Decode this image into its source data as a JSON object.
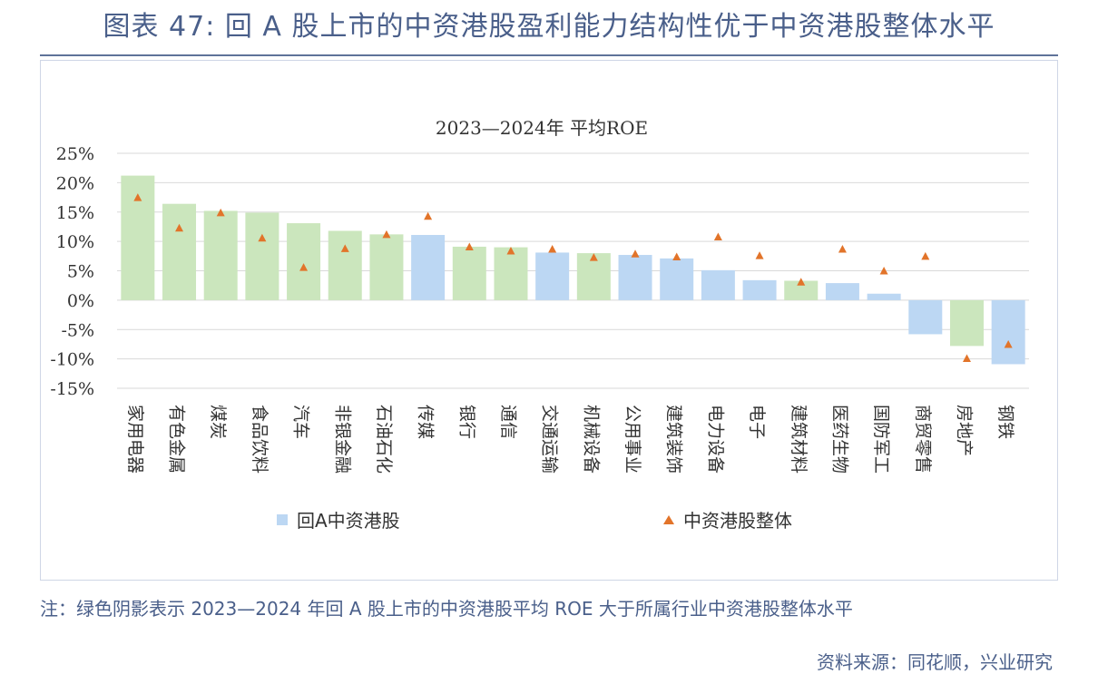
{
  "header": {
    "title": "图表 47: 回 A 股上市的中资港股盈利能力结构性优于中资港股整体水平"
  },
  "note": "注：绿色阴影表示 2023—2024 年回 A 股上市的中资港股平均 ROE 大于所属行业中资港股整体水平",
  "source": "资料来源：同花顺，兴业研究",
  "colors": {
    "bar_blue": "#bcd7f3",
    "bar_green": "#cbe6bd",
    "marker_orange": "#e2742a",
    "grid": "#d9d9d9",
    "title_blue": "#4a5f8a"
  },
  "chart_data": {
    "type": "bar",
    "title": "2023—2024年 平均ROE",
    "xlabel": "",
    "ylabel": "",
    "ylim": [
      -15,
      25
    ],
    "yticks": [
      "25%",
      "20%",
      "15%",
      "10%",
      "5%",
      "0%",
      "-5%",
      "-10%",
      "-15%"
    ],
    "grid": true,
    "legend_placement": "bottom",
    "categories": [
      "家用电器",
      "有色金属",
      "煤炭",
      "食品饮料",
      "汽车",
      "非银金融",
      "石油石化",
      "传媒",
      "银行",
      "通信",
      "交通运输",
      "机械设备",
      "公用事业",
      "建筑装饰",
      "电力设备",
      "电子",
      "建筑材料",
      "医药生物",
      "国防军工",
      "商贸零售",
      "房地产",
      "钢铁"
    ],
    "series": [
      {
        "name": "回A中资港股",
        "kind": "bar",
        "values": [
          21.2,
          16.4,
          15.2,
          14.9,
          13.1,
          11.8,
          11.2,
          11.1,
          9.1,
          9.0,
          8.1,
          8.0,
          7.7,
          7.1,
          5.1,
          3.4,
          3.3,
          2.9,
          1.1,
          -5.8,
          -7.8,
          -10.9
        ],
        "above_industry": [
          true,
          true,
          true,
          true,
          true,
          true,
          true,
          false,
          true,
          true,
          false,
          true,
          false,
          false,
          false,
          false,
          true,
          false,
          false,
          false,
          true,
          false
        ]
      },
      {
        "name": "中资港股整体",
        "kind": "marker",
        "values": [
          17.5,
          12.3,
          14.9,
          10.6,
          5.6,
          8.8,
          11.2,
          14.3,
          9.1,
          8.4,
          8.7,
          7.3,
          7.9,
          7.4,
          10.8,
          7.6,
          3.1,
          8.7,
          5.0,
          7.5,
          -9.9,
          -7.5
        ]
      }
    ]
  }
}
